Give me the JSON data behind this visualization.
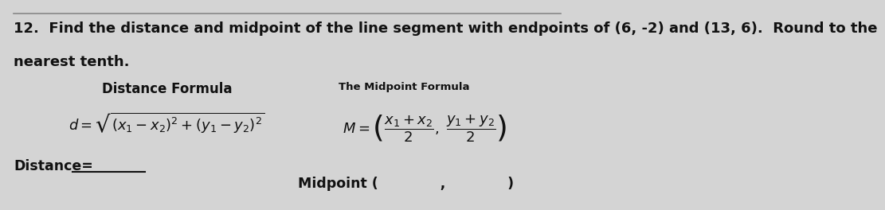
{
  "title_line1": "12.  Find the distance and midpoint of the line segment with endpoints of (6, -2) and (13, 6).  Round to the",
  "title_line2": "nearest tenth.",
  "dist_formula_label": "Distance Formula",
  "midpoint_formula_label": "The Midpoint Formula",
  "distance_label": "Distance=",
  "midpoint_label": "Midpoint (             ,             )",
  "bg_color": "#d4d4d4",
  "text_color": "#111111",
  "title_fontsize": 13.0,
  "label_fontsize": 11,
  "formula_fontsize": 13
}
